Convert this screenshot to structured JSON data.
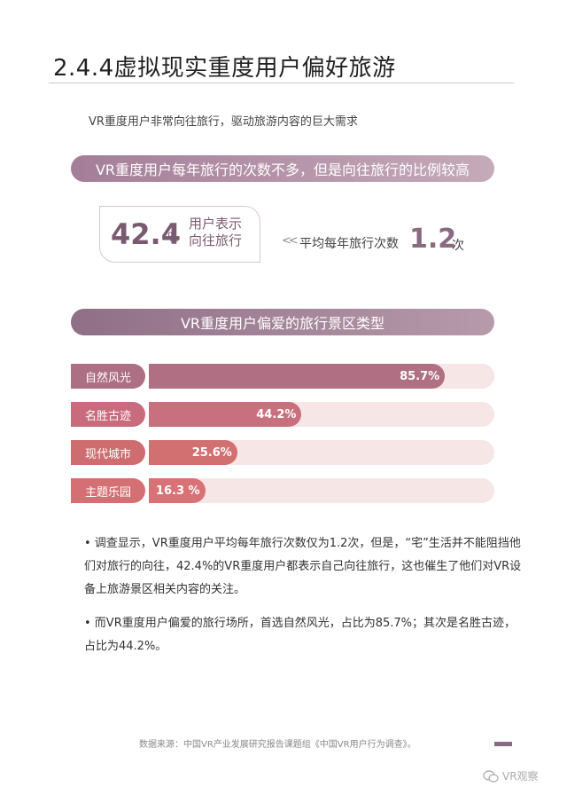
{
  "title": "2.4.4虚拟现实重度用户偏好旅游",
  "subtitle": "VR重度用户非常向往旅行，驱动旅游内容的巨大需求",
  "section1_pill": "VR重度用户每年旅行的次数不多，但是向往旅行的比例较高",
  "stat": {
    "value": "42.4",
    "unit": "%",
    "label_line1": "用户表示",
    "label_line2": "向往旅行"
  },
  "avg": {
    "chevrons": "<<",
    "label": "平均每年旅行次数",
    "value": "1.2",
    "unit": "次"
  },
  "section2_pill": "VR重度用户偏爱的旅行景区类型",
  "chart_data": {
    "type": "bar",
    "title": "VR重度用户偏爱的旅行景区类型",
    "categories": [
      "自然风光",
      "名胜古迹",
      "现代城市",
      "主题乐园"
    ],
    "values": [
      85.7,
      44.2,
      25.6,
      16.3
    ],
    "value_labels": [
      "85.7%",
      "44.2%",
      "25.6%",
      "16.3 %"
    ],
    "ylim": [
      0,
      100
    ],
    "colors": {
      "label_bg": [
        "#ad6f83",
        "#c86b7c",
        "#cf6c6f",
        "#d46f74"
      ],
      "fill": [
        "#b06f83",
        "#c9707e",
        "#d26f71",
        "#d87276"
      ]
    }
  },
  "paragraphs": [
    "• 调查显示，VR重度用户平均每年旅行次数仅为1.2次，但是，“宅”生活并不能阻挡他们对旅行的向往，42.4%的VR重度用户都表示自己向往旅行，这也催生了他们对VR设备上旅游景区相关内容的关注。",
    "• 而VR重度用户偏爱的旅行场所，首选自然风光，占比为85.7%；其次是名胜古迹，占比为44.2%。"
  ],
  "source": "数据来源：中国VR产业发展研究报告课题组《中国VR用户行为调查》。",
  "watermark": "VR观察"
}
